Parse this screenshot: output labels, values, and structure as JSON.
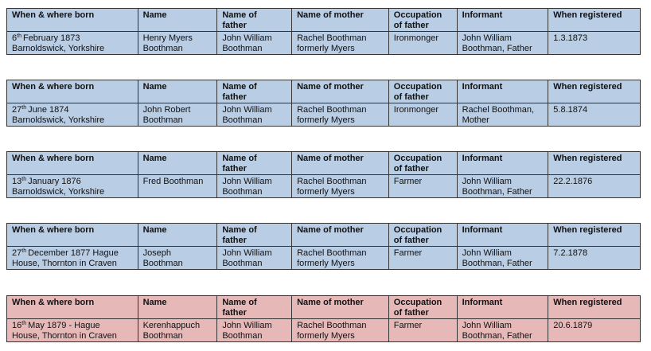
{
  "tables": [
    {
      "color": "#b9cde5",
      "header": [
        [
          "When & where born"
        ],
        [
          "Name"
        ],
        [
          "Name of",
          "father"
        ],
        [
          "Name of mother"
        ],
        [
          "Occupation",
          "of father"
        ],
        [
          "Informant"
        ],
        [
          "When registered"
        ]
      ],
      "born": {
        "day": "6",
        "suffix": "th",
        "line1": "February 1873",
        "line2": "Barnoldswick, Yorkshire"
      },
      "cells": [
        [
          "Henry Myers",
          "Boothman"
        ],
        [
          "John William",
          "Boothman"
        ],
        [
          "Rachel Boothman",
          "formerly Myers"
        ],
        [
          "Ironmonger"
        ],
        [
          "John William",
          "Boothman, Father"
        ],
        [
          "1.3.1873"
        ]
      ]
    },
    {
      "color": "#b9cde5",
      "header": [
        [
          "When & where born"
        ],
        [
          "Name"
        ],
        [
          "Name of",
          "father"
        ],
        [
          "Name of mother"
        ],
        [
          "Occupation",
          "of father"
        ],
        [
          "Informant"
        ],
        [
          "When registered"
        ]
      ],
      "born": {
        "day": "27",
        "suffix": "th",
        "line1": "June 1874",
        "line2": "Barnoldswick, Yorkshire"
      },
      "cells": [
        [
          "John Robert",
          "Boothman"
        ],
        [
          "John William",
          "Boothman"
        ],
        [
          "Rachel Boothman",
          "formerly Myers"
        ],
        [
          "Ironmonger"
        ],
        [
          "Rachel Boothman,",
          "Mother"
        ],
        [
          "5.8.1874"
        ]
      ]
    },
    {
      "color": "#b9cde5",
      "header": [
        [
          "When & where born"
        ],
        [
          "Name"
        ],
        [
          "Name of",
          "father"
        ],
        [
          "Name of mother"
        ],
        [
          "Occupation",
          "of father"
        ],
        [
          "Informant"
        ],
        [
          "When registered"
        ]
      ],
      "born": {
        "day": "13",
        "suffix": "th",
        "line1": "January 1876",
        "line2": "Barnoldswick, Yorkshire"
      },
      "cells": [
        [
          "Fred Boothman"
        ],
        [
          "John William",
          "Boothman"
        ],
        [
          "Rachel Boothman",
          "formerly Myers"
        ],
        [
          "Farmer"
        ],
        [
          "John William",
          "Boothman, Father"
        ],
        [
          "22.2.1876"
        ]
      ]
    },
    {
      "color": "#b9cde5",
      "header": [
        [
          "When & where born"
        ],
        [
          "Name"
        ],
        [
          "Name of",
          "father"
        ],
        [
          "Name of mother"
        ],
        [
          "Occupation",
          "of father"
        ],
        [
          "Informant"
        ],
        [
          "When registered"
        ]
      ],
      "born": {
        "day": "27",
        "suffix": "th",
        "line1": "December 1877 Hague",
        "line2": "House, Thornton in Craven"
      },
      "cells": [
        [
          "Joseph",
          "Boothman"
        ],
        [
          "John William",
          "Boothman"
        ],
        [
          "Rachel Boothman",
          "formerly Myers"
        ],
        [
          "Farmer"
        ],
        [
          "John William",
          "Boothman, Father"
        ],
        [
          "7.2.1878"
        ]
      ]
    },
    {
      "color": "#e6b9b8",
      "header": [
        [
          "When & where born"
        ],
        [
          "Name"
        ],
        [
          "Name of",
          "father"
        ],
        [
          "Name of mother"
        ],
        [
          "Occupation",
          "of father"
        ],
        [
          "Informant"
        ],
        [
          "When registered"
        ]
      ],
      "born": {
        "day": "16",
        "suffix": "th",
        "line1": "May 1879 - Hague",
        "line2": "House, Thornton in Craven"
      },
      "cells": [
        [
          "Kerenhappuch",
          "Boothman"
        ],
        [
          "John William",
          "Boothman"
        ],
        [
          "Rachel Boothman",
          "formerly Myers"
        ],
        [
          "Farmer"
        ],
        [
          "John William",
          "Boothman, Father"
        ],
        [
          "20.6.1879"
        ]
      ]
    }
  ]
}
